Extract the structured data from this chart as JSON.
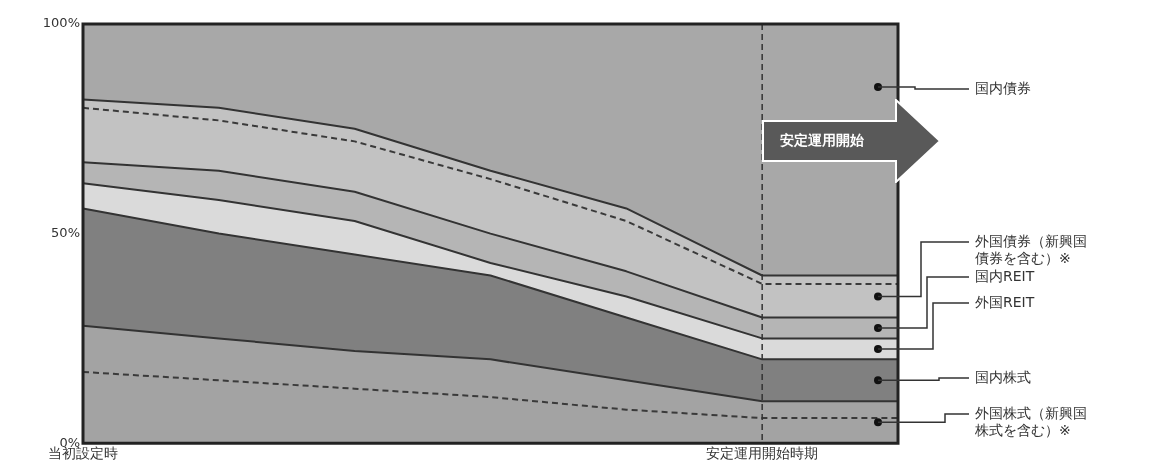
{
  "chart_data": {
    "type": "area",
    "stacked": true,
    "categories": [
      "当初設定時",
      null,
      null,
      null,
      null,
      "安定運用開始時期",
      null
    ],
    "ylim": [
      0,
      100
    ],
    "yticks": [
      {
        "value": 0,
        "label": "0%"
      },
      {
        "value": 50,
        "label": "50%"
      },
      {
        "value": 100,
        "label": "100%"
      }
    ],
    "legend": "right",
    "annotations": [
      "安定運用開始"
    ],
    "ref_lines": [
      {
        "axis": "x",
        "value": "安定運用開始時期",
        "color": "#333333",
        "line_style": "dashed"
      }
    ],
    "series": [
      {
        "name": "外国株式（新興国株式を含む）※",
        "color": "#a3a3a3",
        "values": [
          28,
          25,
          22,
          20,
          15,
          10,
          10
        ]
      },
      {
        "name": "国内株式",
        "color": "#808080",
        "values": [
          28,
          25,
          23,
          20,
          15,
          10,
          10
        ]
      },
      {
        "name": "外国REIT",
        "color": "#dadada",
        "values": [
          6,
          8,
          8,
          3,
          5,
          5,
          5
        ]
      },
      {
        "name": "国内REIT",
        "color": "#b5b5b5",
        "values": [
          5,
          7,
          7,
          7,
          6,
          5,
          5
        ]
      },
      {
        "name": "外国債券（新興国債券を含む）※",
        "color": "#c2c2c2",
        "values": [
          15,
          15,
          15,
          15,
          15,
          10,
          10
        ]
      },
      {
        "name": "国内債券",
        "color": "#a8a8a8",
        "values": [
          18,
          20,
          25,
          35,
          44,
          60,
          60
        ]
      },
      {
        "type": "line",
        "line_style": "dashed",
        "color": "#3a3a3a",
        "values": [
          17,
          15,
          13,
          11,
          8,
          6,
          6
        ]
      },
      {
        "type": "line",
        "line_style": "dashed",
        "color": "#3a3a3a",
        "values": [
          80,
          77,
          72,
          63,
          53,
          38,
          38
        ]
      }
    ]
  }
}
